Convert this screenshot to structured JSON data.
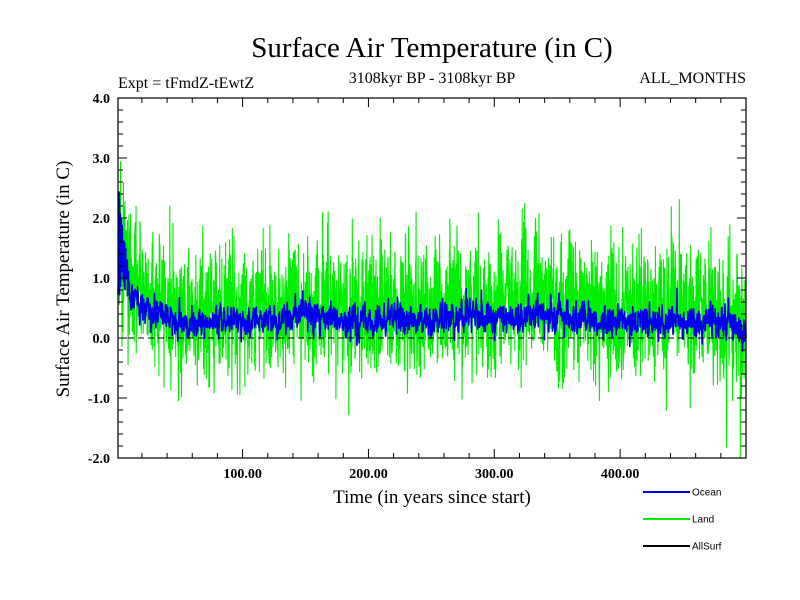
{
  "chart_data": {
    "type": "line",
    "title": "Surface Air Temperature (in C)",
    "subtitle_left": "Expt = tFmdZ-tEwtZ",
    "subtitle_center": "3108kyr BP - 3108kyr BP",
    "subtitle_right": "ALL_MONTHS",
    "xlabel": "Time (in years since start)",
    "ylabel": "Surface Air Temperature (in C)",
    "xlim": [
      1,
      500
    ],
    "ylim": [
      -2.0,
      4.0
    ],
    "x_ticks": [
      100,
      200,
      300,
      400
    ],
    "x_tick_labels": [
      "100.00",
      "200.00",
      "300.00",
      "400.00"
    ],
    "y_ticks": [
      -2.0,
      -1.0,
      0.0,
      1.0,
      2.0,
      3.0,
      4.0
    ],
    "y_tick_labels": [
      "-2.0",
      "-1.0",
      "0.0",
      "1.0",
      "2.0",
      "3.0",
      "4.0"
    ],
    "zero_line": {
      "y": 0.0,
      "style": "dashed"
    },
    "series": [
      {
        "name": "Land",
        "color": "#00ee00",
        "x_sampled": [
          1,
          5,
          10,
          20,
          30,
          40,
          50,
          60,
          70,
          80,
          90,
          100,
          110,
          120,
          130,
          140,
          150,
          160,
          170,
          180,
          190,
          200,
          210,
          220,
          230,
          240,
          250,
          260,
          270,
          280,
          290,
          300,
          310,
          320,
          330,
          340,
          350,
          360,
          370,
          380,
          390,
          400,
          410,
          420,
          430,
          440,
          450,
          460,
          470,
          480,
          490,
          500
        ],
        "mean_sampled": [
          1.3,
          1.1,
          0.9,
          0.75,
          0.65,
          0.55,
          0.45,
          0.45,
          0.4,
          0.45,
          0.5,
          0.5,
          0.45,
          0.45,
          0.5,
          0.55,
          0.6,
          0.55,
          0.5,
          0.55,
          0.5,
          0.45,
          0.5,
          0.5,
          0.55,
          0.5,
          0.5,
          0.55,
          0.6,
          0.55,
          0.5,
          0.5,
          0.55,
          0.6,
          0.65,
          0.6,
          0.6,
          0.55,
          0.5,
          0.45,
          0.5,
          0.45,
          0.45,
          0.5,
          0.5,
          0.5,
          0.45,
          0.45,
          0.5,
          0.45,
          0.4,
          0.35
        ],
        "spread": 0.55,
        "range_observed": [
          -1.4,
          3.2
        ]
      },
      {
        "name": "Ocean",
        "color": "#0000ee",
        "x_sampled": [
          1,
          5,
          10,
          20,
          30,
          40,
          50,
          60,
          70,
          80,
          90,
          100,
          110,
          120,
          130,
          140,
          150,
          160,
          170,
          180,
          190,
          200,
          210,
          220,
          230,
          240,
          250,
          260,
          270,
          280,
          290,
          300,
          310,
          320,
          330,
          340,
          350,
          360,
          370,
          380,
          390,
          400,
          410,
          420,
          430,
          440,
          450,
          460,
          470,
          480,
          490,
          500
        ],
        "mean_sampled": [
          1.25,
          0.95,
          0.75,
          0.55,
          0.45,
          0.35,
          0.25,
          0.2,
          0.25,
          0.3,
          0.3,
          0.25,
          0.25,
          0.3,
          0.3,
          0.35,
          0.4,
          0.35,
          0.3,
          0.3,
          0.3,
          0.25,
          0.3,
          0.3,
          0.35,
          0.3,
          0.3,
          0.35,
          0.4,
          0.35,
          0.3,
          0.3,
          0.35,
          0.4,
          0.45,
          0.4,
          0.4,
          0.35,
          0.3,
          0.25,
          0.3,
          0.25,
          0.25,
          0.3,
          0.3,
          0.3,
          0.25,
          0.25,
          0.3,
          0.25,
          0.15,
          0.15
        ],
        "spread": 0.13,
        "range_observed": [
          -0.1,
          1.45
        ]
      },
      {
        "name": "AllSurf",
        "color": "#000000",
        "values": []
      }
    ],
    "legend": [
      {
        "name": "Ocean",
        "color": "#0000ee"
      },
      {
        "name": "Land",
        "color": "#00ee00"
      },
      {
        "name": "AllSurf",
        "color": "#000000"
      }
    ],
    "legend_position": "bottom-right"
  }
}
